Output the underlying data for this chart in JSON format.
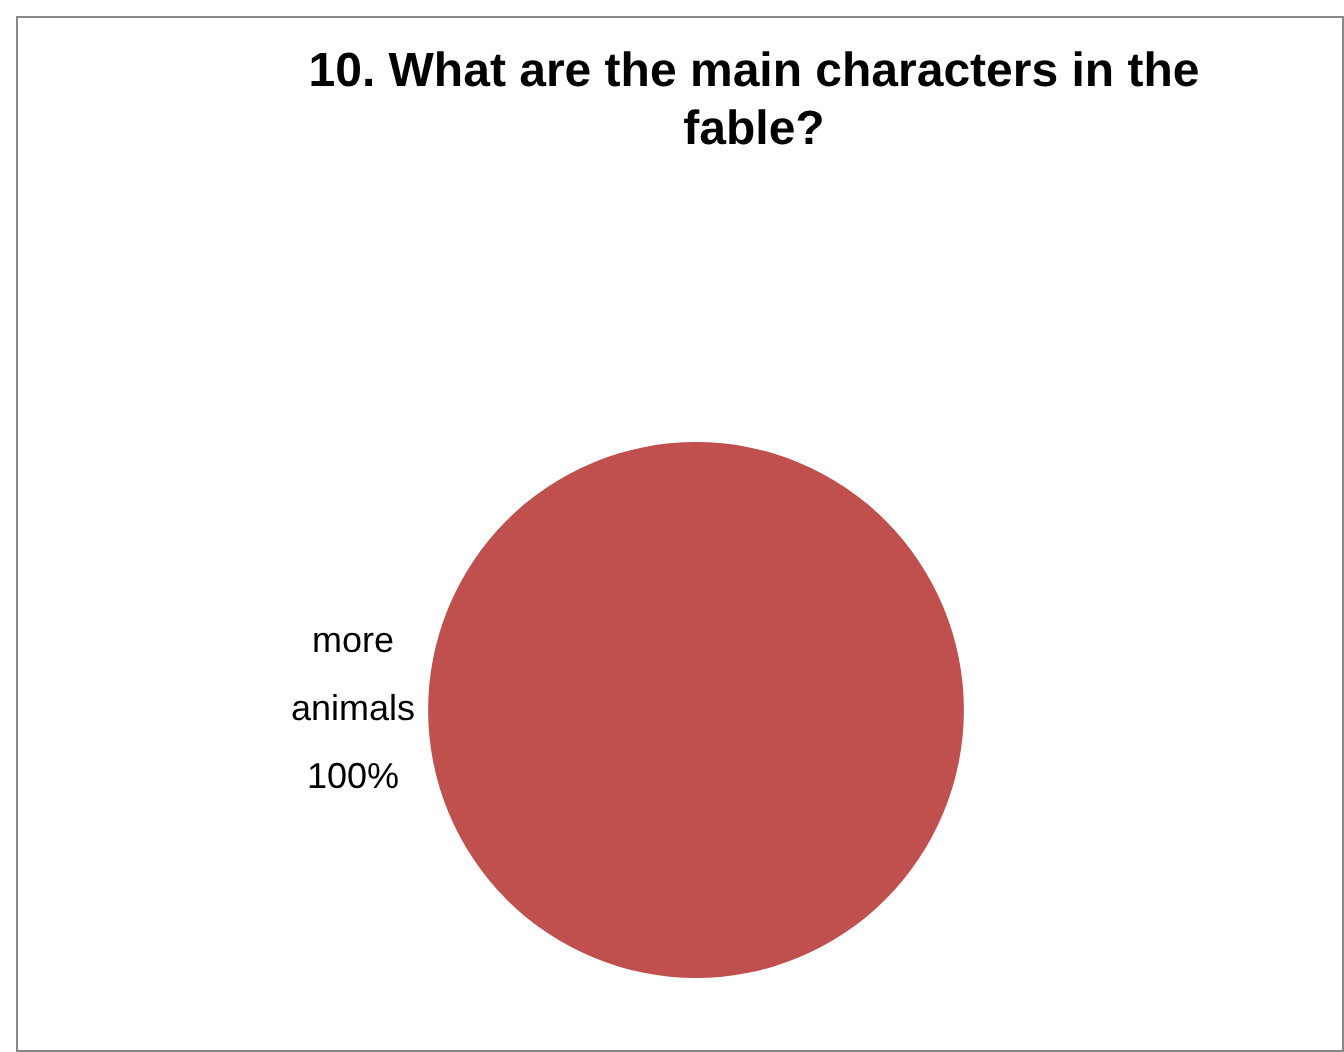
{
  "chart_data": {
    "type": "pie",
    "title": "10. What are the main characters in the fable?",
    "categories": [
      "more animals"
    ],
    "values": [
      100
    ],
    "value_labels": [
      "100%"
    ],
    "colors": [
      "#c0504d"
    ],
    "legend": false
  }
}
